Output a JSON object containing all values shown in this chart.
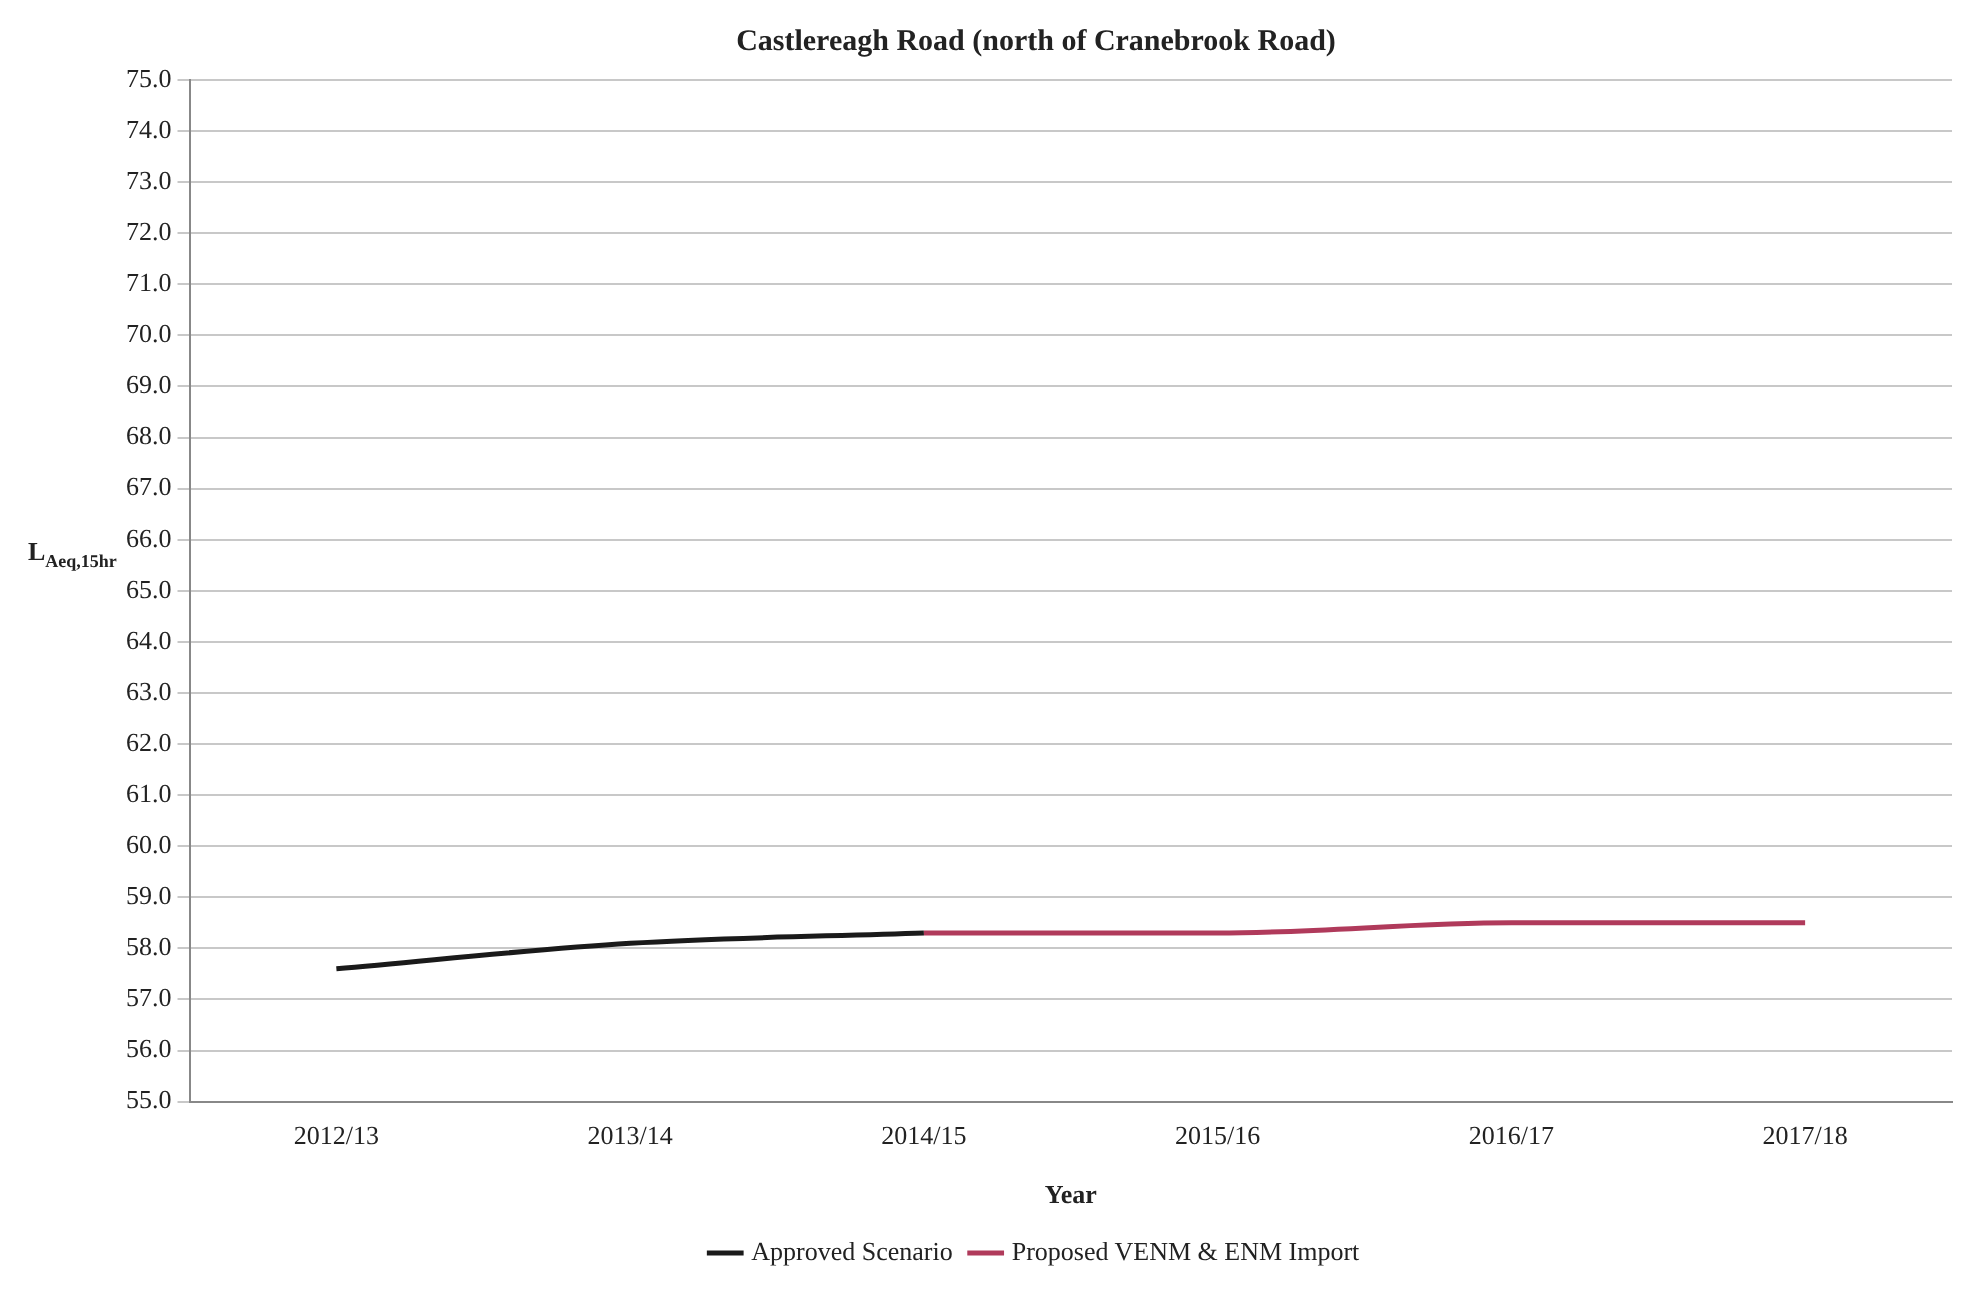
{
  "chart_data": {
    "type": "line",
    "title": "Castlereagh Road (north of Cranebrook Road)",
    "xlabel": "Year",
    "ylabel": "L$_{Aeq,15hr}$",
    "categories": [
      "2012/13",
      "2013/14",
      "2014/15",
      "2015/16",
      "2016/17",
      "2017/18"
    ],
    "series": [
      {
        "name": "Approved Scenario",
        "color": "#1a1a1a",
        "values": [
          57.6,
          58.1,
          58.3,
          null,
          null,
          null
        ]
      },
      {
        "name": "Proposed VENM & ENM Import",
        "color": "#b03a5b",
        "values": [
          null,
          null,
          58.3,
          58.3,
          58.5,
          58.5
        ]
      }
    ],
    "ylim": [
      55,
      75
    ],
    "yticks": [
      {
        "value": 55,
        "label": "55.0"
      },
      {
        "value": 56,
        "label": "56.0"
      },
      {
        "value": 57,
        "label": "57.0"
      },
      {
        "value": 58,
        "label": "58.0"
      },
      {
        "value": 59,
        "label": "59.0"
      },
      {
        "value": 60,
        "label": "60.0"
      },
      {
        "value": 61,
        "label": "61.0"
      },
      {
        "value": 62,
        "label": "62.0"
      },
      {
        "value": 63,
        "label": "63.0"
      },
      {
        "value": 64,
        "label": "64.0"
      },
      {
        "value": 65,
        "label": "65.0"
      },
      {
        "value": 66,
        "label": "66.0"
      },
      {
        "value": 67,
        "label": "67.0"
      },
      {
        "value": 68,
        "label": "68.0"
      },
      {
        "value": 69,
        "label": "69.0"
      },
      {
        "value": 70,
        "label": "70.0"
      },
      {
        "value": 71,
        "label": "71.0"
      },
      {
        "value": 72,
        "label": "72.0"
      },
      {
        "value": 73,
        "label": "73.0"
      },
      {
        "value": 74,
        "label": "74.0"
      },
      {
        "value": 75,
        "label": "75.0"
      }
    ],
    "grid": "y",
    "legend": "bottom",
    "marker": "none",
    "line_style": "solid"
  }
}
